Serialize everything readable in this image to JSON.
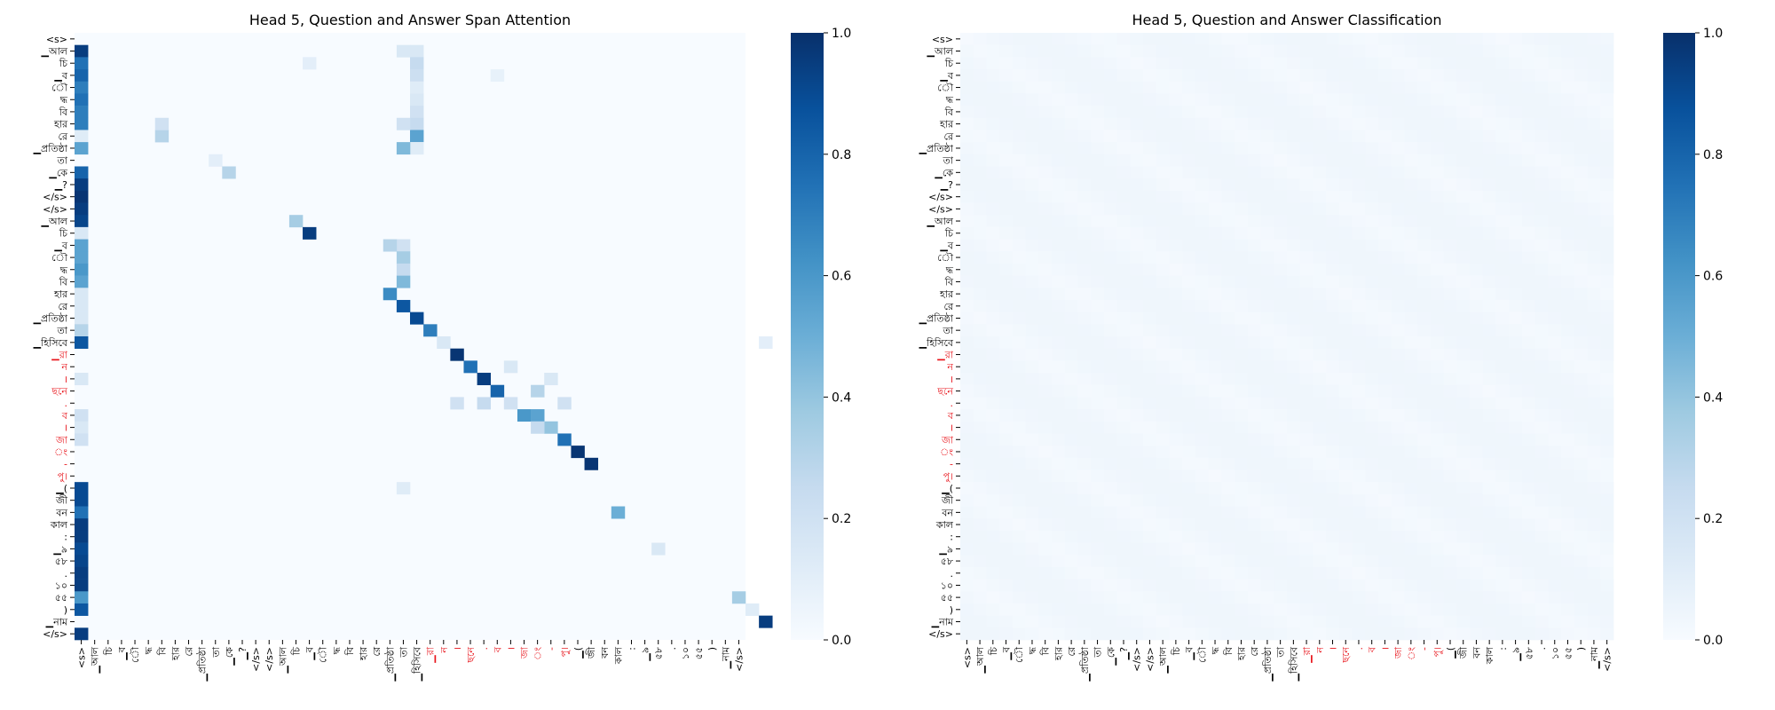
{
  "colors": {
    "cmap_low": "#f7fbff",
    "cmap_high": "#08306b",
    "highlight_label": "#e8141b",
    "tick": "#000000"
  },
  "labels": [
    "<s>",
    "▁আল",
    "চি",
    "▁ব",
    "ৌ",
    "দ্ধ",
    "বি",
    "হার",
    "রে",
    "▁প্রতিষ্ঠা",
    "তা",
    "▁কে",
    "▁?",
    "</s>",
    "</s>",
    "▁আল",
    "চি",
    "▁ব",
    "ৌ",
    "দ্ধ",
    "বি",
    "হার",
    "রে",
    "▁প্রতিষ্ঠা",
    "তা",
    "▁হিসিবে",
    "▁রা",
    "ন",
    "।",
    "ছনে",
    ".",
    "ব",
    "।",
    "জা",
    "ং",
    "-",
    "পু।",
    "▁(",
    "জী",
    "বন",
    "কাল",
    ":",
    "▁৯",
    "৫৮",
    ".",
    "১০",
    "৫৫",
    ")",
    "▁নাম",
    "</s>"
  ],
  "highlighted_labels": [
    26,
    27,
    28,
    29,
    30,
    31,
    32,
    33,
    34,
    35,
    36
  ],
  "chart_data": [
    {
      "type": "heatmap",
      "title": "Head 5, Question and Answer Span Attention",
      "colorbar_ticks": [
        "0.0",
        "0.2",
        "0.4",
        "0.6",
        "0.8",
        "1.0"
      ],
      "vmin": 0,
      "vmax": 1,
      "cells": [
        [
          1,
          0,
          0.95
        ],
        [
          2,
          0,
          0.75
        ],
        [
          3,
          0,
          0.8
        ],
        [
          4,
          0,
          0.7
        ],
        [
          5,
          0,
          0.75
        ],
        [
          6,
          0,
          0.7
        ],
        [
          7,
          0,
          0.7
        ],
        [
          8,
          0,
          0.12
        ],
        [
          9,
          0,
          0.55
        ],
        [
          11,
          0,
          0.8
        ],
        [
          12,
          0,
          0.95
        ],
        [
          13,
          0,
          0.98
        ],
        [
          14,
          0,
          0.95
        ],
        [
          15,
          0,
          0.92
        ],
        [
          16,
          0,
          0.15
        ],
        [
          17,
          0,
          0.55
        ],
        [
          18,
          0,
          0.55
        ],
        [
          19,
          0,
          0.6
        ],
        [
          20,
          0,
          0.55
        ],
        [
          21,
          0,
          0.15
        ],
        [
          22,
          0,
          0.15
        ],
        [
          23,
          0,
          0.15
        ],
        [
          24,
          0,
          0.3
        ],
        [
          25,
          0,
          0.85
        ],
        [
          28,
          0,
          0.15
        ],
        [
          31,
          0,
          0.2
        ],
        [
          32,
          0,
          0.15
        ],
        [
          33,
          0,
          0.2
        ],
        [
          37,
          0,
          0.9
        ],
        [
          38,
          0,
          0.9
        ],
        [
          39,
          0,
          0.75
        ],
        [
          40,
          0,
          0.95
        ],
        [
          41,
          0,
          0.95
        ],
        [
          42,
          0,
          0.9
        ],
        [
          43,
          0,
          0.92
        ],
        [
          44,
          0,
          0.95
        ],
        [
          45,
          0,
          0.95
        ],
        [
          46,
          0,
          0.6
        ],
        [
          47,
          0,
          0.85
        ],
        [
          49,
          0,
          0.95
        ],
        [
          1,
          25,
          0.15
        ],
        [
          2,
          25,
          0.25
        ],
        [
          3,
          25,
          0.22
        ],
        [
          4,
          25,
          0.12
        ],
        [
          5,
          25,
          0.15
        ],
        [
          6,
          25,
          0.2
        ],
        [
          7,
          25,
          0.25
        ],
        [
          8,
          25,
          0.55
        ],
        [
          9,
          25,
          0.15
        ],
        [
          7,
          24,
          0.2
        ],
        [
          8,
          6,
          0.3
        ],
        [
          7,
          6,
          0.2
        ],
        [
          9,
          25,
          0.12
        ],
        [
          15,
          16,
          0.35
        ],
        [
          16,
          17,
          0.95
        ],
        [
          2,
          17,
          0.1
        ],
        [
          17,
          24,
          0.2
        ],
        [
          17,
          23,
          0.3
        ],
        [
          18,
          24,
          0.35
        ],
        [
          19,
          24,
          0.25
        ],
        [
          20,
          24,
          0.45
        ],
        [
          21,
          23,
          0.65
        ],
        [
          22,
          24,
          0.85
        ],
        [
          23,
          25,
          0.9
        ],
        [
          24,
          26,
          0.7
        ],
        [
          25,
          27,
          0.15
        ],
        [
          26,
          28,
          0.98
        ],
        [
          27,
          29,
          0.75
        ],
        [
          27,
          32,
          0.15
        ],
        [
          28,
          30,
          0.95
        ],
        [
          29,
          31,
          0.8
        ],
        [
          29,
          34,
          0.3
        ],
        [
          30,
          28,
          0.2
        ],
        [
          30,
          30,
          0.25
        ],
        [
          30,
          32,
          0.2
        ],
        [
          31,
          33,
          0.6
        ],
        [
          31,
          34,
          0.55
        ],
        [
          32,
          35,
          0.4
        ],
        [
          32,
          34,
          0.25
        ],
        [
          33,
          36,
          0.75
        ],
        [
          34,
          37,
          0.98
        ],
        [
          35,
          38,
          0.98
        ],
        [
          9,
          24,
          0.45
        ],
        [
          10,
          10,
          0.1
        ],
        [
          11,
          11,
          0.3
        ],
        [
          39,
          40,
          0.5
        ],
        [
          42,
          43,
          0.15
        ],
        [
          46,
          49,
          0.35
        ],
        [
          47,
          50,
          0.12
        ],
        [
          48,
          51,
          0.95
        ],
        [
          3,
          31,
          0.08
        ],
        [
          28,
          35,
          0.15
        ],
        [
          30,
          36,
          0.2
        ],
        [
          1,
          24,
          0.15
        ],
        [
          37,
          24,
          0.12
        ],
        [
          25,
          51,
          0.1
        ]
      ]
    },
    {
      "type": "heatmap",
      "title": "Head 5, Question and Answer Classification",
      "colorbar_ticks": [
        "0.0",
        "0.2",
        "0.4",
        "0.6",
        "0.8",
        "1.0"
      ],
      "vmin": 0,
      "vmax": 1,
      "cells": []
    }
  ]
}
